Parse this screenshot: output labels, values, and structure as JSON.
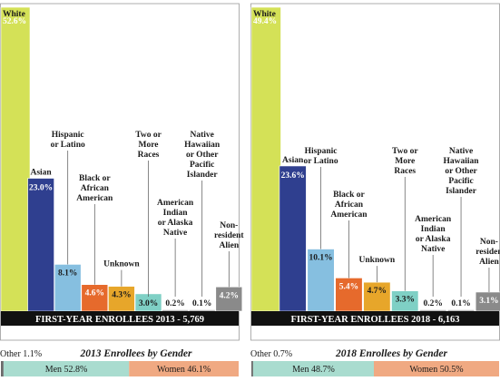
{
  "chart_data": [
    {
      "type": "bar",
      "categories": [
        {
          "name": [
            "White"
          ],
          "value": 52.6,
          "label": "52.6%",
          "color": "#d4e157"
        },
        {
          "name": [
            "Asian"
          ],
          "value": 23.0,
          "label": "23.0%",
          "color": "#2f3f8f"
        },
        {
          "name": [
            "Hispanic",
            "or Latino"
          ],
          "value": 8.1,
          "label": "8.1%",
          "color": "#86bfe0"
        },
        {
          "name": [
            "Black or",
            "African",
            "American"
          ],
          "value": 4.6,
          "label": "4.6%",
          "color": "#e66a2c"
        },
        {
          "name": [
            "Unknown"
          ],
          "value": 4.3,
          "label": "4.3%",
          "color": "#e7a62a"
        },
        {
          "name": [
            "Two or",
            "More",
            "Races"
          ],
          "value": 3.0,
          "label": "3.0%",
          "color": "#7fd0c5"
        },
        {
          "name": [
            "American",
            "Indian",
            "or Alaska",
            "Native"
          ],
          "value": 0.2,
          "label": "0.2%",
          "color": "#9e9e9e"
        },
        {
          "name": [
            "Native",
            "Hawaiian",
            "or Other",
            "Pacific",
            "Islander"
          ],
          "value": 0.1,
          "label": "0.1%",
          "color": "#9e9e9e"
        },
        {
          "name": [
            "Non-",
            "resident",
            "Alien"
          ],
          "value": 4.2,
          "label": "4.2%",
          "color": "#8a8a8a"
        }
      ],
      "band_label": "FIRST-YEAR ENROLLEES 2013 - 5,769",
      "gender_title": "2013 Enrollees by Gender",
      "other_label": "Other",
      "other_value": "1.1%",
      "other_pct": 1.1,
      "men_label": "Men 52.8%",
      "men_pct": 52.8,
      "women_label": "Women 46.1%",
      "women_pct": 46.1
    },
    {
      "type": "bar",
      "categories": [
        {
          "name": [
            "White"
          ],
          "value": 49.4,
          "label": "49.4%",
          "color": "#d4e157"
        },
        {
          "name": [
            "Asian"
          ],
          "value": 23.6,
          "label": "23.6%",
          "color": "#2f3f8f"
        },
        {
          "name": [
            "Hispanic",
            "or Latino"
          ],
          "value": 10.1,
          "label": "10.1%",
          "color": "#86bfe0"
        },
        {
          "name": [
            "Black or",
            "African",
            "American"
          ],
          "value": 5.4,
          "label": "5.4%",
          "color": "#e66a2c"
        },
        {
          "name": [
            "Unknown"
          ],
          "value": 4.7,
          "label": "4.7%",
          "color": "#e7a62a"
        },
        {
          "name": [
            "Two or",
            "More",
            "Races"
          ],
          "value": 3.3,
          "label": "3.3%",
          "color": "#7fd0c5"
        },
        {
          "name": [
            "American",
            "Indian",
            "or Alaska",
            "Native"
          ],
          "value": 0.2,
          "label": "0.2%",
          "color": "#9e9e9e"
        },
        {
          "name": [
            "Native",
            "Hawaiian",
            "or Other",
            "Pacific",
            "Islander"
          ],
          "value": 0.1,
          "label": "0.1%",
          "color": "#9e9e9e"
        },
        {
          "name": [
            "Non-",
            "residen",
            "Alien"
          ],
          "value": 3.1,
          "label": "3.1%",
          "color": "#8a8a8a"
        }
      ],
      "band_label": "FIRST-YEAR ENROLLEES 2018 - 6,163",
      "gender_title": "2018 Enrollees by Gender",
      "other_label": "Other",
      "other_value": "0.7%",
      "other_pct": 0.7,
      "men_label": "Men 48.7%",
      "men_pct": 48.7,
      "women_label": "Women 50.5%",
      "women_pct": 50.5
    }
  ]
}
